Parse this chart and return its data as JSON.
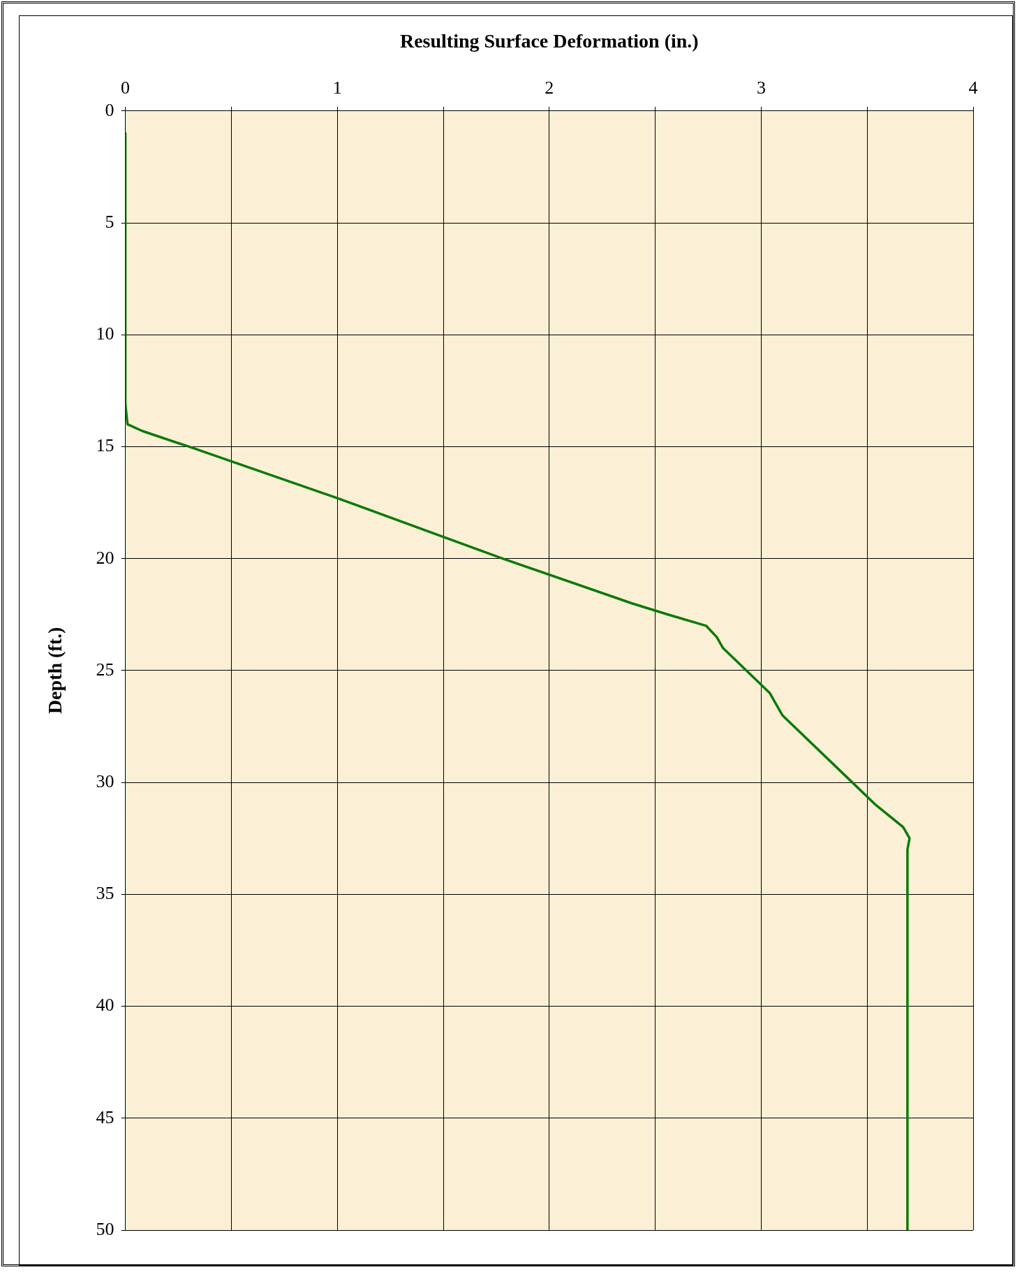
{
  "chart_data": {
    "type": "line",
    "xlabel": "Resulting Surface Deformation (in.)",
    "ylabel": "Depth (ft.)",
    "x": [
      0,
      0,
      0.01,
      0.08,
      0.3,
      1,
      1.78,
      2.39,
      2.56,
      2.74,
      2.79,
      2.82,
      3.04,
      3.1,
      3.43,
      3.54,
      3.67,
      3.7,
      3.69,
      3.69
    ],
    "values": [
      1,
      13.1,
      14,
      14.3,
      15,
      17.3,
      20,
      22,
      22.5,
      23,
      23.5,
      24,
      26,
      27,
      30,
      31,
      32,
      32.5,
      33,
      50
    ],
    "color": "#0a7a0a",
    "xlim": [
      0,
      4
    ],
    "ylim": [
      50,
      0
    ],
    "xticks": [
      0,
      {
        "value": 0.5,
        "label": null
      },
      1,
      {
        "value": 1.5,
        "label": null
      },
      2,
      {
        "value": 2.5,
        "label": null
      },
      3,
      {
        "value": 3.5,
        "label": null
      },
      4
    ],
    "yticks": [
      0,
      5,
      10,
      15,
      20,
      25,
      30,
      35,
      40,
      45,
      50
    ],
    "grid": true,
    "legend": false,
    "marker": "none",
    "line_style": "solid"
  }
}
